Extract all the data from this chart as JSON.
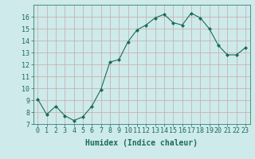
{
  "x": [
    0,
    1,
    2,
    3,
    4,
    5,
    6,
    7,
    8,
    9,
    10,
    11,
    12,
    13,
    14,
    15,
    16,
    17,
    18,
    19,
    20,
    21,
    22,
    23
  ],
  "y": [
    9.1,
    7.8,
    8.5,
    7.7,
    7.3,
    7.6,
    8.5,
    9.9,
    12.2,
    12.4,
    13.9,
    14.9,
    15.3,
    15.9,
    16.2,
    15.5,
    15.3,
    16.3,
    15.9,
    15.0,
    13.6,
    12.8,
    12.8,
    13.4
  ],
  "line_color": "#1a6b5a",
  "marker": "D",
  "marker_size": 2,
  "bg_color": "#ceeaea",
  "grid_color": "#b8d8d8",
  "xlabel": "Humidex (Indice chaleur)",
  "xlim": [
    -0.5,
    23.5
  ],
  "ylim": [
    7,
    17
  ],
  "yticks": [
    7,
    8,
    9,
    10,
    11,
    12,
    13,
    14,
    15,
    16
  ],
  "xticks": [
    0,
    1,
    2,
    3,
    4,
    5,
    6,
    7,
    8,
    9,
    10,
    11,
    12,
    13,
    14,
    15,
    16,
    17,
    18,
    19,
    20,
    21,
    22,
    23
  ],
  "tick_color": "#1a6b5a",
  "label_color": "#1a6b5a",
  "label_fontsize": 7,
  "tick_fontsize": 6
}
